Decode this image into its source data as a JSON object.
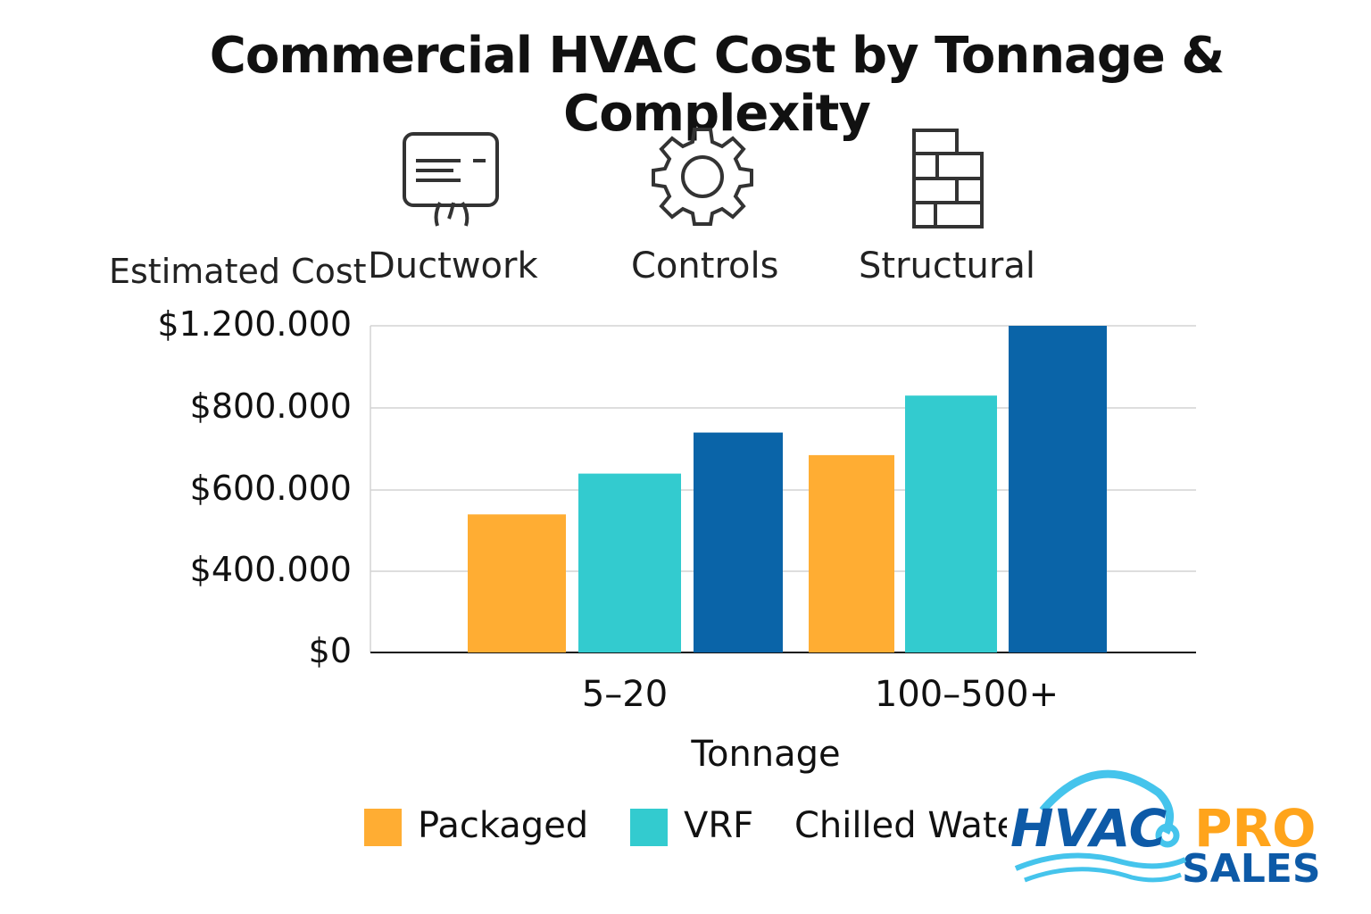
{
  "chart_data": {
    "type": "bar",
    "title": "Commercial HVAC Cost by Tonnage & Complexity",
    "ylabel": "Estimated Cost",
    "xlabel": "Tonnage",
    "categories": [
      "5–20",
      "100–500+"
    ],
    "y_ticks": [
      0,
      400000,
      600000,
      800000,
      1200000
    ],
    "y_tick_labels": [
      "$0",
      "$400.000",
      "$600.000",
      "$800.000",
      "$1.200.000"
    ],
    "ylim": [
      0,
      1200000
    ],
    "grid": true,
    "legend_position": "bottom",
    "series": [
      {
        "name": "Packaged",
        "color": "#FFAD33",
        "values": [
          540000,
          685000
        ]
      },
      {
        "name": "VRF",
        "color": "#33CBCF",
        "values": [
          640000,
          860000
        ]
      },
      {
        "name": "Chilled Water",
        "color": "#0A64A8",
        "values": [
          740000,
          1200000
        ]
      }
    ]
  },
  "complexity_factors": [
    {
      "label": "Ductwork",
      "icon": "air-conditioner-icon"
    },
    {
      "label": "Controls",
      "icon": "gear-icon"
    },
    {
      "label": "Structural",
      "icon": "brick-wall-icon"
    }
  ],
  "logo": {
    "text": "HVAC PRO SALES",
    "colors": {
      "hvac": "#0D5AA7",
      "pro": "#FFA41B",
      "swoosh": "#45C4EC"
    }
  }
}
